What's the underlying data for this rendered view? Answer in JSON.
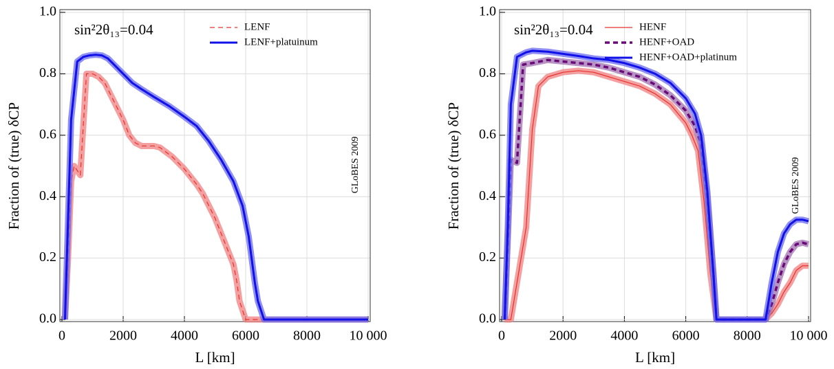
{
  "chart_data": [
    {
      "type": "line",
      "annotation": "sin²2θ₁₃=0.04",
      "watermark": "GLoBES 2009",
      "x_label": "L [km]",
      "y_label": "Fraction of (true) δCP",
      "xlim": [
        0,
        10000
      ],
      "ylim": [
        0,
        1
      ],
      "xticks": [
        0,
        2000,
        4000,
        6000,
        8000,
        {
          "value": 10000,
          "label": "10 000"
        }
      ],
      "yticks": [
        {
          "value": 0,
          "label": "0.0"
        },
        0.2,
        0.4,
        0.6,
        0.8,
        {
          "value": 1,
          "label": "1.0"
        }
      ],
      "grid": true,
      "legend": "top",
      "series": [
        {
          "name": "LENF",
          "color": "#e8302a",
          "band_color": "#f08080",
          "dash": "dashed",
          "width": 1.2,
          "x": [
            100,
            200,
            300,
            400,
            600,
            800,
            1000,
            1200,
            1400,
            1600,
            1800,
            2000,
            2200,
            2400,
            2600,
            2800,
            3000,
            3200,
            3400,
            3600,
            3800,
            4000,
            4200,
            4400,
            4600,
            4800,
            5000,
            5200,
            5400,
            5600,
            5700,
            5800,
            6000,
            6400,
            10000
          ],
          "values": [
            0,
            0.2,
            0.45,
            0.5,
            0.47,
            0.8,
            0.8,
            0.79,
            0.77,
            0.73,
            0.69,
            0.65,
            0.6,
            0.575,
            0.565,
            0.565,
            0.565,
            0.56,
            0.545,
            0.53,
            0.51,
            0.49,
            0.465,
            0.44,
            0.41,
            0.37,
            0.33,
            0.28,
            0.23,
            0.18,
            0.13,
            0.06,
            0,
            0,
            0
          ]
        },
        {
          "name": "LENF+platuinum",
          "color": "#1010e8",
          "band_color": "#6a6af0",
          "dash": "solid",
          "width": 3,
          "x": [
            100,
            300,
            500,
            700,
            900,
            1100,
            1300,
            1500,
            1700,
            2000,
            2300,
            2600,
            3000,
            3500,
            4000,
            4400,
            4800,
            5200,
            5600,
            5900,
            6100,
            6300,
            6400,
            6600,
            10000
          ],
          "values": [
            0,
            0.65,
            0.84,
            0.855,
            0.86,
            0.862,
            0.86,
            0.85,
            0.83,
            0.8,
            0.77,
            0.75,
            0.725,
            0.695,
            0.66,
            0.63,
            0.58,
            0.52,
            0.45,
            0.37,
            0.27,
            0.12,
            0.06,
            0,
            0
          ]
        }
      ]
    },
    {
      "type": "line",
      "annotation": "sin²2θ₁₃=0.04",
      "watermark": "GLoBES 2009",
      "x_label": "L [km]",
      "y_label": "Fraction of (true) δCP",
      "xlim": [
        0,
        10000
      ],
      "ylim": [
        0,
        1
      ],
      "xticks": [
        0,
        2000,
        4000,
        6000,
        8000,
        {
          "value": 10000,
          "label": "10 000"
        }
      ],
      "yticks": [
        {
          "value": 0,
          "label": "0.0"
        },
        0.2,
        0.4,
        0.6,
        0.8,
        {
          "value": 1,
          "label": "1.0"
        }
      ],
      "grid": true,
      "legend": "top",
      "series": [
        {
          "name": "HENF",
          "color": "#e8302a",
          "band_color": "#f08080",
          "dash": "solid",
          "width": 1.2,
          "x": [
            100,
            300,
            500,
            800,
            1000,
            1200,
            1500,
            2000,
            2500,
            3000,
            3500,
            4000,
            4500,
            5000,
            5500,
            6000,
            6200,
            6400,
            6600,
            6800,
            7000,
            8600,
            8800,
            9000,
            9200,
            9400,
            9600,
            9800,
            10000
          ],
          "values": [
            0,
            0,
            0.12,
            0.3,
            0.62,
            0.76,
            0.79,
            0.805,
            0.81,
            0.805,
            0.79,
            0.775,
            0.76,
            0.735,
            0.7,
            0.64,
            0.6,
            0.55,
            0.38,
            0.15,
            0,
            0,
            0.02,
            0.05,
            0.09,
            0.12,
            0.16,
            0.175,
            0.175
          ]
        },
        {
          "name": "HENF+OAD",
          "color": "#6a0a78",
          "band_color": "#a070b0",
          "dash": "dashed",
          "width": 3.5,
          "x": [
            100,
            300,
            500,
            700,
            1000,
            1500,
            2000,
            2500,
            3000,
            3500,
            4000,
            4500,
            5000,
            5500,
            6000,
            6300,
            6500,
            6700,
            6900,
            7000,
            8600,
            8800,
            9000,
            9200,
            9400,
            9600,
            9800,
            10000
          ],
          "values": [
            0,
            0.52,
            0.51,
            0.83,
            0.835,
            0.845,
            0.84,
            0.835,
            0.83,
            0.82,
            0.805,
            0.79,
            0.765,
            0.73,
            0.68,
            0.63,
            0.57,
            0.4,
            0.15,
            0,
            0,
            0.05,
            0.12,
            0.18,
            0.22,
            0.245,
            0.25,
            0.245
          ]
        },
        {
          "name": "HENF+OAD+platinum",
          "color": "#1010e8",
          "band_color": "#6a6af0",
          "dash": "solid",
          "width": 3,
          "x": [
            100,
            200,
            300,
            500,
            800,
            1000,
            1500,
            2000,
            2500,
            3000,
            3500,
            4000,
            4500,
            5000,
            5500,
            6000,
            6300,
            6500,
            6700,
            6900,
            7000,
            8600,
            8800,
            9000,
            9200,
            9400,
            9600,
            9800,
            10000
          ],
          "values": [
            0,
            0.3,
            0.7,
            0.855,
            0.87,
            0.875,
            0.872,
            0.865,
            0.858,
            0.85,
            0.845,
            0.835,
            0.82,
            0.8,
            0.77,
            0.72,
            0.67,
            0.6,
            0.42,
            0.15,
            0,
            0,
            0.12,
            0.22,
            0.28,
            0.31,
            0.325,
            0.325,
            0.32
          ]
        }
      ]
    }
  ]
}
